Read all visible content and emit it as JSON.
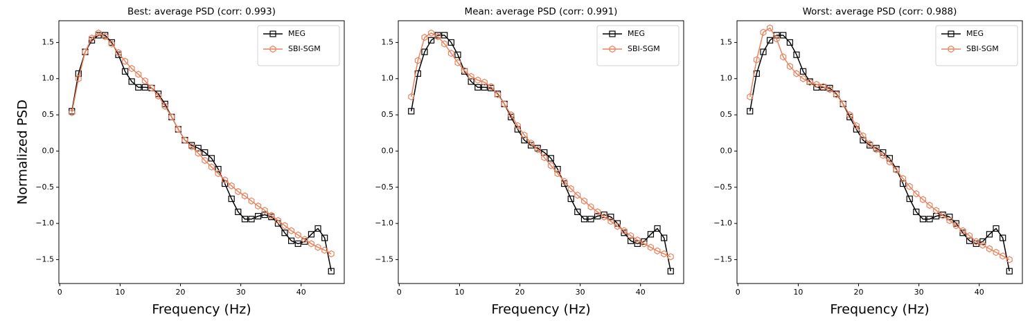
{
  "chart_data": [
    {
      "type": "line",
      "title": "Best: average PSD (corr: 0.993)",
      "xlabel": "Frequency (Hz)",
      "ylabel": "Normalized PSD",
      "x": [
        2,
        3.1,
        4.21,
        5.31,
        6.41,
        7.51,
        8.62,
        9.72,
        10.82,
        11.92,
        13.03,
        14.13,
        15.23,
        16.33,
        17.44,
        18.54,
        19.64,
        20.74,
        21.85,
        22.95,
        24.05,
        25.15,
        26.26,
        27.36,
        28.46,
        29.56,
        30.67,
        31.77,
        32.87,
        33.97,
        35.08,
        36.18,
        37.28,
        38.38,
        39.49,
        40.59,
        41.69,
        42.79,
        43.9,
        45
      ],
      "series": [
        {
          "name": "MEG",
          "color": "#000000",
          "marker": "square",
          "values": [
            0.55,
            1.07,
            1.37,
            1.53,
            1.6,
            1.6,
            1.5,
            1.33,
            1.1,
            0.96,
            0.88,
            0.88,
            0.87,
            0.79,
            0.65,
            0.47,
            0.3,
            0.15,
            0.08,
            0.04,
            -0.02,
            -0.1,
            -0.25,
            -0.45,
            -0.66,
            -0.84,
            -0.94,
            -0.94,
            -0.9,
            -0.88,
            -0.91,
            -1.0,
            -1.13,
            -1.24,
            -1.28,
            -1.25,
            -1.15,
            -1.07,
            -1.2,
            -1.66
          ]
        },
        {
          "name": "SBI-SGM",
          "color": "#e9825d",
          "marker": "hexagon",
          "values": [
            0.53,
            1.0,
            1.37,
            1.56,
            1.63,
            1.58,
            1.48,
            1.36,
            1.24,
            1.14,
            1.06,
            0.97,
            0.87,
            0.76,
            0.62,
            0.47,
            0.3,
            0.15,
            0.06,
            -0.03,
            -0.13,
            -0.22,
            -0.31,
            -0.4,
            -0.48,
            -0.56,
            -0.62,
            -0.69,
            -0.76,
            -0.82,
            -0.89,
            -0.96,
            -1.03,
            -1.1,
            -1.16,
            -1.22,
            -1.28,
            -1.33,
            -1.37,
            -1.42
          ]
        }
      ],
      "xlim": [
        -0.15,
        47.15
      ],
      "xticks": [
        0,
        10,
        20,
        30,
        40
      ],
      "ylim": [
        -1.83,
        1.8
      ],
      "yticks": [
        {
          "value": -1.5,
          "label": "−1.5"
        },
        {
          "value": -1,
          "label": "−1.0"
        },
        {
          "value": -0.5,
          "label": "−0.5"
        },
        {
          "value": 0,
          "label": "0.0"
        },
        0.5,
        {
          "value": 1,
          "label": "1.0"
        },
        1.5
      ],
      "legend": "upper right"
    },
    {
      "type": "line",
      "title": "Mean: average PSD (corr: 0.991)",
      "xlabel": "Frequency (Hz)",
      "x": [
        2,
        3.1,
        4.21,
        5.31,
        6.41,
        7.51,
        8.62,
        9.72,
        10.82,
        11.92,
        13.03,
        14.13,
        15.23,
        16.33,
        17.44,
        18.54,
        19.64,
        20.74,
        21.85,
        22.95,
        24.05,
        25.15,
        26.26,
        27.36,
        28.46,
        29.56,
        30.67,
        31.77,
        32.87,
        33.97,
        35.08,
        36.18,
        37.28,
        38.38,
        39.49,
        40.59,
        41.69,
        42.79,
        43.9,
        45
      ],
      "series": [
        {
          "name": "MEG",
          "color": "#000000",
          "marker": "square",
          "values": [
            0.55,
            1.07,
            1.37,
            1.53,
            1.6,
            1.6,
            1.5,
            1.33,
            1.1,
            0.96,
            0.88,
            0.88,
            0.87,
            0.79,
            0.65,
            0.47,
            0.3,
            0.15,
            0.08,
            0.04,
            -0.02,
            -0.1,
            -0.25,
            -0.45,
            -0.66,
            -0.84,
            -0.94,
            -0.94,
            -0.9,
            -0.88,
            -0.91,
            -1.0,
            -1.13,
            -1.24,
            -1.28,
            -1.25,
            -1.15,
            -1.07,
            -1.2,
            -1.66
          ]
        },
        {
          "name": "SBI-SGM",
          "color": "#e9825d",
          "marker": "hexagon",
          "values": [
            0.75,
            1.25,
            1.57,
            1.63,
            1.58,
            1.48,
            1.35,
            1.22,
            1.11,
            1.03,
            0.98,
            0.95,
            0.89,
            0.78,
            0.65,
            0.5,
            0.35,
            0.22,
            0.11,
            0.02,
            -0.09,
            -0.2,
            -0.31,
            -0.42,
            -0.52,
            -0.61,
            -0.69,
            -0.77,
            -0.84,
            -0.91,
            -0.97,
            -1.04,
            -1.1,
            -1.17,
            -1.23,
            -1.28,
            -1.33,
            -1.38,
            -1.42,
            -1.46
          ]
        }
      ],
      "xlim": [
        -0.15,
        47.15
      ],
      "xticks": [
        0,
        10,
        20,
        30,
        40
      ],
      "ylim": [
        -1.83,
        1.8
      ],
      "yticks": [
        {
          "value": -1.5,
          "label": "−1.5"
        },
        {
          "value": -1,
          "label": "−1.0"
        },
        {
          "value": -0.5,
          "label": "−0.5"
        },
        {
          "value": 0,
          "label": "0.0"
        },
        0.5,
        {
          "value": 1,
          "label": "1.0"
        },
        1.5
      ],
      "legend": "upper right"
    },
    {
      "type": "line",
      "title": "Worst: average PSD (corr: 0.988)",
      "xlabel": "Frequency (Hz)",
      "x": [
        2,
        3.1,
        4.21,
        5.31,
        6.41,
        7.51,
        8.62,
        9.72,
        10.82,
        11.92,
        13.03,
        14.13,
        15.23,
        16.33,
        17.44,
        18.54,
        19.64,
        20.74,
        21.85,
        22.95,
        24.05,
        25.15,
        26.26,
        27.36,
        28.46,
        29.56,
        30.67,
        31.77,
        32.87,
        33.97,
        35.08,
        36.18,
        37.28,
        38.38,
        39.49,
        40.59,
        41.69,
        42.79,
        43.9,
        45
      ],
      "series": [
        {
          "name": "MEG",
          "color": "#000000",
          "marker": "square",
          "values": [
            0.55,
            1.07,
            1.37,
            1.53,
            1.6,
            1.6,
            1.5,
            1.33,
            1.1,
            0.96,
            0.88,
            0.88,
            0.87,
            0.79,
            0.65,
            0.47,
            0.3,
            0.15,
            0.08,
            0.04,
            -0.02,
            -0.1,
            -0.25,
            -0.45,
            -0.66,
            -0.84,
            -0.94,
            -0.94,
            -0.9,
            -0.88,
            -0.91,
            -1.0,
            -1.13,
            -1.24,
            -1.28,
            -1.25,
            -1.15,
            -1.07,
            -1.2,
            -1.66
          ]
        },
        {
          "name": "SBI-SGM",
          "color": "#e9825d",
          "marker": "hexagon",
          "values": [
            0.75,
            1.26,
            1.64,
            1.7,
            1.55,
            1.3,
            1.17,
            1.07,
            1.0,
            0.95,
            0.92,
            0.89,
            0.85,
            0.78,
            0.65,
            0.5,
            0.35,
            0.21,
            0.1,
            0.02,
            -0.06,
            -0.15,
            -0.26,
            -0.38,
            -0.49,
            -0.59,
            -0.67,
            -0.75,
            -0.82,
            -0.89,
            -0.96,
            -1.03,
            -1.1,
            -1.17,
            -1.25,
            -1.3,
            -1.35,
            -1.4,
            -1.45,
            -1.5
          ]
        }
      ],
      "xlim": [
        -0.15,
        47.15
      ],
      "xticks": [
        0,
        10,
        20,
        30,
        40
      ],
      "ylim": [
        -1.83,
        1.8
      ],
      "yticks": [
        {
          "value": -1.5,
          "label": "−1.5"
        },
        {
          "value": -1,
          "label": "−1.0"
        },
        {
          "value": -0.5,
          "label": "−0.5"
        },
        {
          "value": 0,
          "label": "0.0"
        },
        0.5,
        {
          "value": 1,
          "label": "1.0"
        },
        1.5
      ],
      "legend": "upper right"
    }
  ]
}
